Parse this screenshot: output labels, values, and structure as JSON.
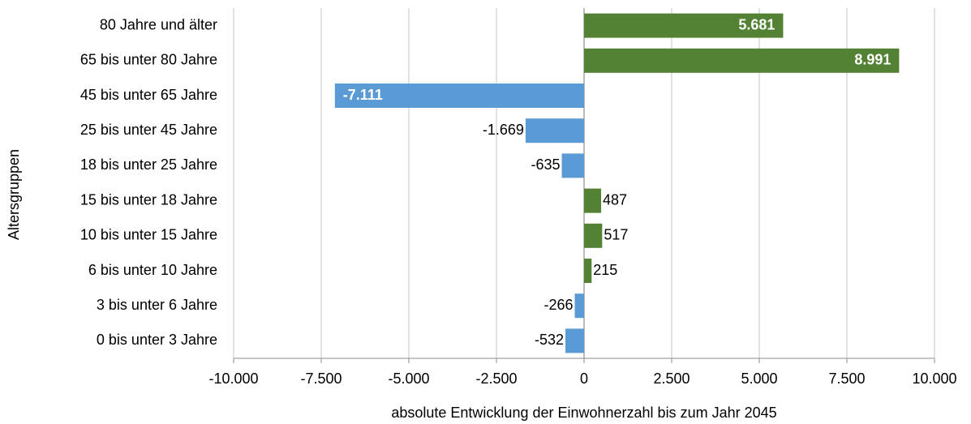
{
  "chart_data": {
    "type": "hbar",
    "categories": [
      "80 Jahre und älter",
      "65 bis unter 80 Jahre",
      "45 bis unter 65 Jahre",
      "25 bis unter 45 Jahre",
      "18 bis unter 25 Jahre",
      "15 bis unter 18 Jahre",
      "10 bis unter 15 Jahre",
      "6 bis unter 10 Jahre",
      "3 bis unter 6 Jahre",
      "0 bis unter 3 Jahre"
    ],
    "values": [
      5681,
      8991,
      -7111,
      -1669,
      -635,
      487,
      517,
      215,
      -266,
      -532
    ],
    "value_labels": [
      "5.681",
      "8.991",
      "-7.111",
      "-1.669",
      "-635",
      "487",
      "517",
      "215",
      "-266",
      "-532"
    ],
    "positive_color": "#548235",
    "negative_color": "#5b9bd5",
    "xlim": [
      -10000,
      10000
    ],
    "xticks": [
      {
        "value": -10000,
        "label": "-10.000"
      },
      {
        "value": -7500,
        "label": "-7.500"
      },
      {
        "value": -5000,
        "label": "-5.000"
      },
      {
        "value": -2500,
        "label": "-2.500"
      },
      0,
      {
        "value": 2500,
        "label": "2.500"
      },
      {
        "value": 5000,
        "label": "5.000"
      },
      {
        "value": 7500,
        "label": "7.500"
      },
      {
        "value": 10000,
        "label": "10.000"
      }
    ],
    "xlabel": "absolute Entwicklung der Einwohnerzahl  bis zum Jahr 2045",
    "ylabel": "Altersgruppen",
    "grid": true
  }
}
